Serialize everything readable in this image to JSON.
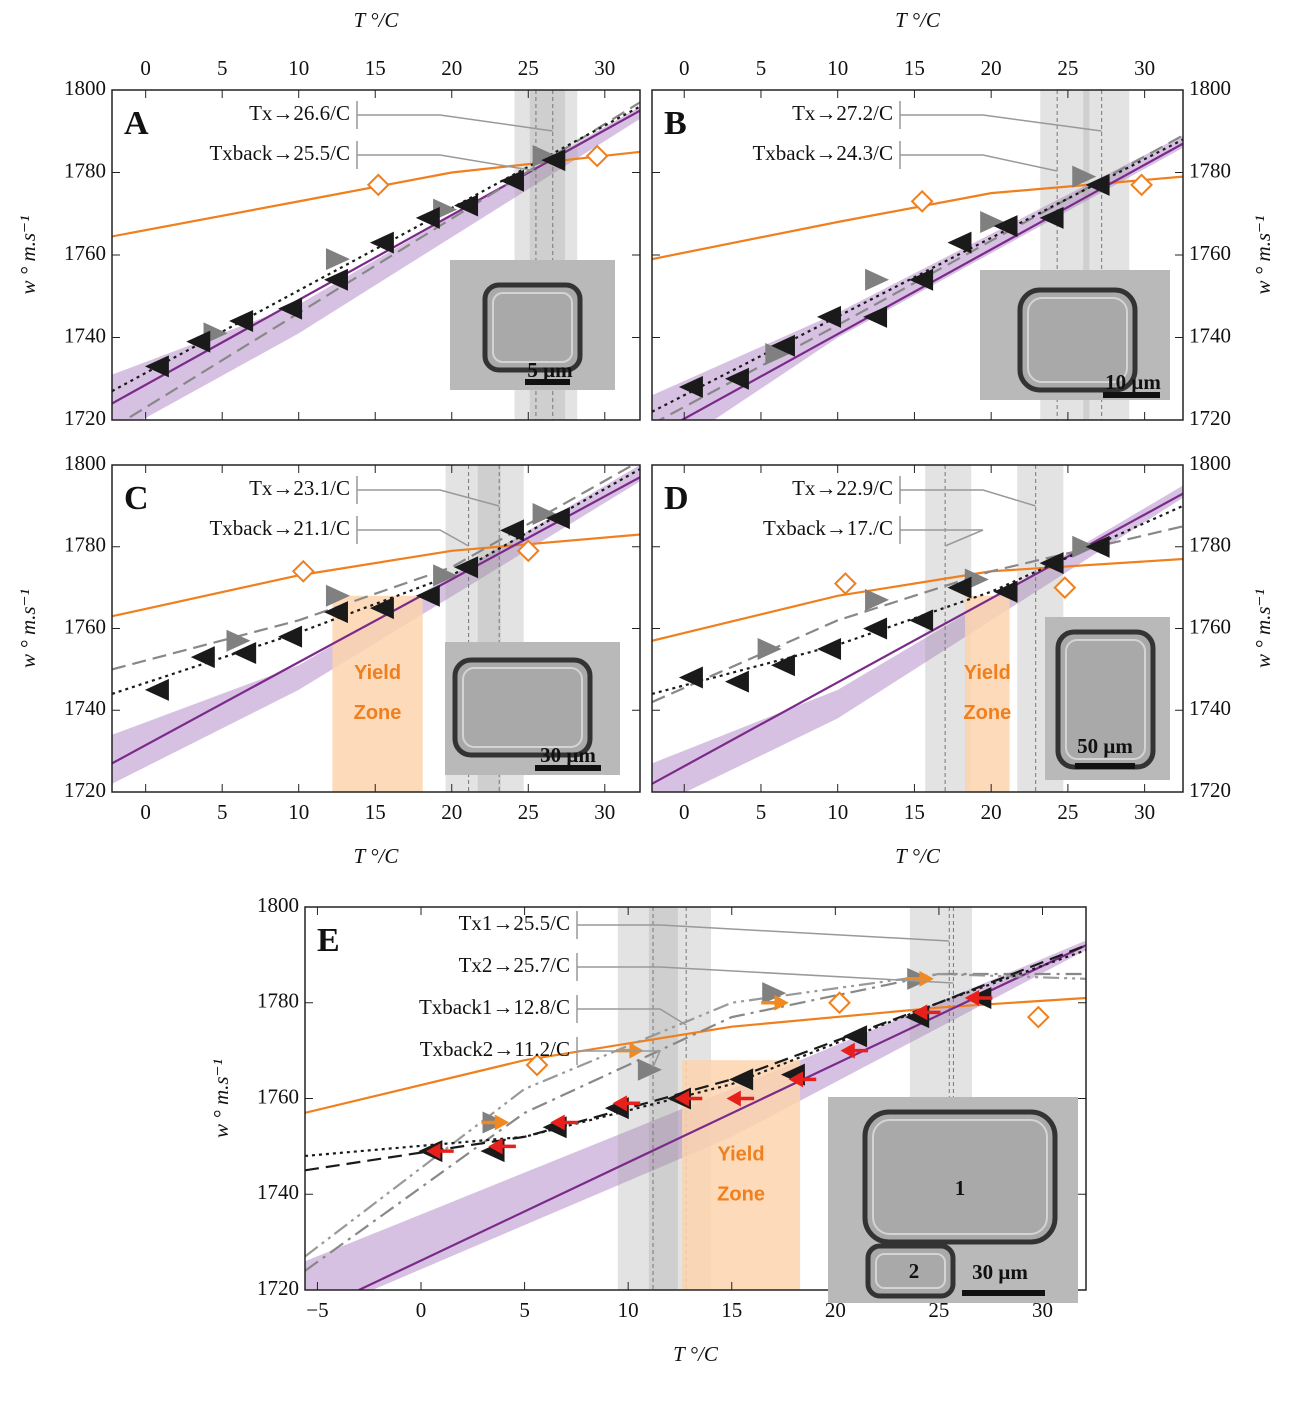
{
  "chart_data": [
    {
      "type": "scatter",
      "panel": "A",
      "xlabel": "T °/C",
      "ylabel": "w ° m.s⁻¹",
      "xaxis_labels": "top",
      "yaxis_labels": "left",
      "xlim": [
        -2.2,
        32.3
      ],
      "ylim": [
        1720,
        1800
      ],
      "xticks": [
        0,
        5,
        10,
        15,
        20,
        25,
        30
      ],
      "yticks": [
        1720,
        1740,
        1760,
        1780,
        1800
      ],
      "shaded": [
        [
          24.1,
          27.4
        ],
        [
          25.1,
          28.2
        ]
      ],
      "vlines": [
        26.6,
        25.5
      ],
      "annotations": [
        "Tx→26.6/C",
        "Txback→25.5/C"
      ],
      "series": [
        {
          "kind": "band",
          "color": "#c6a6d6",
          "x": [
            -2.2,
            10,
            32.3
          ],
          "values": [
            1731,
            1748,
            1796
          ],
          "lower": [
            1716,
            1741,
            1793
          ]
        },
        {
          "kind": "line",
          "style": "solid",
          "color": "#f07f1e",
          "x": [
            -2.2,
            10,
            20,
            32.3
          ],
          "values": [
            1764.5,
            1773,
            1780,
            1785
          ]
        },
        {
          "kind": "line",
          "style": "solid",
          "color": "#7b2a8a",
          "x": [
            -2.2,
            32.3
          ],
          "values": [
            1724,
            1795
          ]
        },
        {
          "kind": "line",
          "style": "dashed",
          "color": "#888888",
          "x": [
            -2.2,
            32.3
          ],
          "values": [
            1718,
            1797
          ]
        },
        {
          "kind": "line",
          "style": "dotted",
          "color": "#1a1a1a",
          "x": [
            -2.2,
            32.3
          ],
          "values": [
            1727,
            1796
          ]
        },
        {
          "kind": "marker",
          "marker": "diamond",
          "color": "#f07f1e",
          "x": [
            15.2,
            29.5
          ],
          "values": [
            1777,
            1784
          ]
        },
        {
          "kind": "marker",
          "marker": "right-triangle",
          "color": "#808080",
          "x": [
            4.5,
            12.5,
            19.5,
            26
          ],
          "values": [
            1741,
            1759,
            1771,
            1784
          ]
        },
        {
          "kind": "marker",
          "marker": "left-triangle",
          "color": "#1a1a1a",
          "x": [
            0.8,
            3.5,
            6.3,
            9.5,
            12.5,
            15.5,
            18.5,
            21,
            24,
            26.7
          ],
          "values": [
            1733,
            1739,
            1744,
            1747,
            1754,
            1763,
            1769,
            1772,
            1778,
            1783
          ]
        }
      ],
      "inset": {
        "scale_label": "5 μm"
      }
    },
    {
      "type": "scatter",
      "panel": "B",
      "xlabel": "T °/C",
      "ylabel": "w ° m.s⁻¹",
      "xaxis_labels": "top",
      "yaxis_labels": "right",
      "xlim": [
        -2.1,
        32.5
      ],
      "ylim": [
        1720,
        1800
      ],
      "xticks": [
        0,
        5,
        10,
        15,
        20,
        25,
        30
      ],
      "yticks": [
        1720,
        1740,
        1760,
        1780,
        1800
      ],
      "shaded": [
        [
          23.2,
          26.4
        ],
        [
          26.0,
          29.0
        ]
      ],
      "vlines": [
        27.2,
        24.3
      ],
      "annotations": [
        "Tx→27.2/C",
        "Txback→24.3/C"
      ],
      "series": [
        {
          "kind": "band",
          "color": "#c6a6d6",
          "x": [
            -2.1,
            10,
            32.5
          ],
          "values": [
            1726,
            1746,
            1789
          ],
          "lower": [
            1710,
            1740,
            1786
          ]
        },
        {
          "kind": "line",
          "style": "solid",
          "color": "#f07f1e",
          "x": [
            -2.1,
            10,
            20,
            32.5
          ],
          "values": [
            1759,
            1768,
            1775,
            1779
          ]
        },
        {
          "kind": "line",
          "style": "solid",
          "color": "#7b2a8a",
          "x": [
            -2.1,
            32.5
          ],
          "values": [
            1716,
            1787
          ]
        },
        {
          "kind": "line",
          "style": "dashed",
          "color": "#888888",
          "x": [
            -2.1,
            10,
            32.5
          ],
          "values": [
            1719,
            1743,
            1789
          ]
        },
        {
          "kind": "line",
          "style": "dotted",
          "color": "#1a1a1a",
          "x": [
            -2.1,
            32.5
          ],
          "values": [
            1722,
            1788
          ]
        },
        {
          "kind": "marker",
          "marker": "diamond",
          "color": "#f07f1e",
          "x": [
            15.5,
            29.8
          ],
          "values": [
            1773,
            1777
          ]
        },
        {
          "kind": "marker",
          "marker": "right-triangle",
          "color": "#808080",
          "x": [
            6,
            12.5,
            20,
            26
          ],
          "values": [
            1736,
            1754,
            1768,
            1779
          ]
        },
        {
          "kind": "marker",
          "marker": "left-triangle",
          "color": "#1a1a1a",
          "x": [
            0.5,
            3.5,
            6.5,
            9.5,
            12.5,
            15.5,
            18,
            21,
            24,
            27
          ],
          "values": [
            1728,
            1730,
            1738,
            1745,
            1745,
            1754,
            1763,
            1767,
            1769,
            1777
          ]
        }
      ],
      "inset": {
        "scale_label": "10 μm"
      }
    },
    {
      "type": "scatter",
      "panel": "C",
      "xlabel": "T °/C",
      "ylabel": "w ° m.s⁻¹",
      "xaxis_labels": "bottom",
      "yaxis_labels": "left",
      "xlim": [
        -2.2,
        32.3
      ],
      "ylim": [
        1720,
        1800
      ],
      "xticks": [
        0,
        5,
        10,
        15,
        20,
        25,
        30
      ],
      "yticks": [
        1720,
        1740,
        1760,
        1780,
        1800
      ],
      "shaded": [
        [
          19.6,
          23.2
        ],
        [
          21.7,
          24.7
        ]
      ],
      "vlines": [
        23.1,
        21.1
      ],
      "annotations": [
        "Tx→23.1/C",
        "Txback→21.1/C"
      ],
      "yield_zone": {
        "text": [
          "Yield",
          "Zone"
        ],
        "x": [
          12.2,
          18.1
        ]
      },
      "series": [
        {
          "kind": "band",
          "color": "#c6a6d6",
          "x": [
            -2.2,
            10,
            32.3
          ],
          "values": [
            1734,
            1751,
            1800
          ],
          "lower": [
            1722,
            1745,
            1796
          ]
        },
        {
          "kind": "line",
          "style": "solid",
          "color": "#f07f1e",
          "x": [
            -2.2,
            10,
            20,
            32.3
          ],
          "values": [
            1763,
            1773,
            1779,
            1783
          ]
        },
        {
          "kind": "line",
          "style": "solid",
          "color": "#7b2a8a",
          "x": [
            -2.2,
            32.3
          ],
          "values": [
            1727,
            1797
          ]
        },
        {
          "kind": "line",
          "style": "dashed",
          "color": "#888888",
          "x": [
            -2.2,
            10,
            20,
            32.3
          ],
          "values": [
            1750,
            1762,
            1775,
            1801
          ]
        },
        {
          "kind": "line",
          "style": "dotted",
          "color": "#1a1a1a",
          "x": [
            -2.2,
            10,
            20,
            32.3
          ],
          "values": [
            1744,
            1759,
            1773,
            1799
          ]
        },
        {
          "kind": "marker",
          "marker": "diamond",
          "color": "#f07f1e",
          "x": [
            10.3,
            25
          ],
          "values": [
            1774,
            1779
          ]
        },
        {
          "kind": "marker",
          "marker": "right-triangle",
          "color": "#808080",
          "x": [
            6,
            12.5,
            19.5,
            26
          ],
          "values": [
            1757,
            1768,
            1773,
            1788
          ]
        },
        {
          "kind": "marker",
          "marker": "left-triangle",
          "color": "#1a1a1a",
          "x": [
            0.8,
            3.8,
            6.5,
            9.5,
            12.5,
            15.5,
            18.5,
            21,
            24,
            27
          ],
          "values": [
            1745,
            1753,
            1754,
            1758,
            1764,
            1765,
            1768,
            1775,
            1784,
            1787
          ]
        }
      ],
      "inset": {
        "scale_label": "30 μm"
      }
    },
    {
      "type": "scatter",
      "panel": "D",
      "xlabel": "T °/C",
      "ylabel": "w ° m.s⁻¹",
      "xaxis_labels": "bottom",
      "yaxis_labels": "right",
      "xlim": [
        -2.1,
        32.5
      ],
      "ylim": [
        1720,
        1800
      ],
      "xticks": [
        0,
        5,
        10,
        15,
        20,
        25,
        30
      ],
      "yticks": [
        1720,
        1740,
        1760,
        1780,
        1800
      ],
      "shaded": [
        [
          15.7,
          18.7
        ],
        [
          21.7,
          24.7
        ]
      ],
      "vlines": [
        22.9,
        17
      ],
      "annotations": [
        "Tx→22.9/C",
        "Txback→17./C"
      ],
      "yield_zone": {
        "text": [
          "Yield",
          "Zone"
        ],
        "x": [
          18.3,
          21.2
        ]
      },
      "series": [
        {
          "kind": "band",
          "color": "#c6a6d6",
          "x": [
            -2.1,
            10,
            32.5
          ],
          "values": [
            1727,
            1745,
            1795
          ],
          "lower": [
            1716,
            1738,
            1792
          ]
        },
        {
          "kind": "line",
          "style": "solid",
          "color": "#f07f1e",
          "x": [
            -2.1,
            10,
            20,
            32.5
          ],
          "values": [
            1757,
            1768,
            1774,
            1777
          ]
        },
        {
          "kind": "line",
          "style": "solid",
          "color": "#7b2a8a",
          "x": [
            -2.1,
            32.5
          ],
          "values": [
            1722,
            1793
          ]
        },
        {
          "kind": "line",
          "style": "dashed",
          "color": "#888888",
          "x": [
            -2.1,
            10,
            20,
            32.5
          ],
          "values": [
            1742,
            1762,
            1774,
            1785
          ]
        },
        {
          "kind": "line",
          "style": "dotted",
          "color": "#1a1a1a",
          "x": [
            -2.1,
            10,
            20,
            32.5
          ],
          "values": [
            1744,
            1756,
            1769,
            1790
          ]
        },
        {
          "kind": "marker",
          "marker": "diamond",
          "color": "#f07f1e",
          "x": [
            10.5,
            24.8
          ],
          "values": [
            1771,
            1770
          ]
        },
        {
          "kind": "marker",
          "marker": "right-triangle",
          "color": "#808080",
          "x": [
            5.5,
            12.5,
            19,
            26
          ],
          "values": [
            1755,
            1767,
            1772,
            1780
          ]
        },
        {
          "kind": "marker",
          "marker": "left-triangle",
          "color": "#1a1a1a",
          "x": [
            0.5,
            3.5,
            6.5,
            9.5,
            12.5,
            15.5,
            18,
            21,
            24,
            27
          ],
          "values": [
            1748,
            1747,
            1751,
            1755,
            1760,
            1762,
            1770,
            1769,
            1776,
            1780
          ]
        }
      ],
      "inset": {
        "scale_label": "50 μm"
      }
    },
    {
      "type": "scatter",
      "panel": "E",
      "xlabel": "T °/C",
      "ylabel": "w ° m.s⁻¹",
      "xaxis_labels": "bottom",
      "yaxis_labels": "left",
      "xlim": [
        -5.6,
        32.1
      ],
      "ylim": [
        1720,
        1800
      ],
      "xticks": [
        {
          "value": -5,
          "label": "−5"
        },
        0,
        5,
        10,
        15,
        20,
        25,
        30
      ],
      "yticks": [
        1720,
        1740,
        1760,
        1780,
        1800
      ],
      "shaded": [
        [
          9.5,
          14.0
        ],
        [
          11.0,
          12.4
        ],
        [
          23.6,
          26.6
        ]
      ],
      "vlines": [
        25.5,
        25.7,
        12.8,
        11.2
      ],
      "annotations": [
        "Tx1→25.5/C",
        "Tx2→25.7/C",
        "Txback1→12.8/C",
        "Txback2→11.2/C"
      ],
      "yield_zone": {
        "text": [
          "Yield",
          "Zone"
        ],
        "x": [
          12.6,
          18.3
        ]
      },
      "series": [
        {
          "kind": "band",
          "color": "#c6a6d6",
          "x": [
            -5.6,
            15,
            32.1
          ],
          "values": [
            1726,
            1762,
            1793
          ],
          "lower": [
            1714,
            1752,
            1791
          ]
        },
        {
          "kind": "line",
          "style": "solid",
          "color": "#f07f1e",
          "x": [
            -5.6,
            5,
            15,
            25,
            32.1
          ],
          "values": [
            1757,
            1768,
            1775,
            1779,
            1781
          ]
        },
        {
          "kind": "line",
          "style": "solid",
          "color": "#7b2a8a",
          "x": [
            -3,
            32.1
          ],
          "values": [
            1720,
            1792
          ]
        },
        {
          "kind": "line",
          "style": "dashdot",
          "color": "#888888",
          "x": [
            -5.6,
            5,
            15,
            25,
            32.1
          ],
          "values": [
            1724,
            1757,
            1777,
            1786,
            1786
          ]
        },
        {
          "kind": "line",
          "style": "dashdotdot",
          "color": "#999999",
          "x": [
            -5.6,
            5,
            15,
            25,
            32.1
          ],
          "values": [
            1727,
            1762,
            1780,
            1786,
            1785
          ]
        },
        {
          "kind": "line",
          "style": "dashed",
          "color": "#1a1a1a",
          "x": [
            -5.6,
            5,
            15,
            25,
            32.1
          ],
          "values": [
            1745,
            1752,
            1764,
            1780,
            1792
          ]
        },
        {
          "kind": "line",
          "style": "dotted",
          "color": "#1a1a1a",
          "x": [
            -5.6,
            5,
            15,
            25,
            32.1
          ],
          "values": [
            1748,
            1752,
            1763,
            1780,
            1791
          ]
        },
        {
          "kind": "marker",
          "marker": "diamond",
          "color": "#f07f1e",
          "x": [
            5.6,
            20.2,
            29.8
          ],
          "values": [
            1767,
            1780,
            1777
          ]
        },
        {
          "kind": "marker",
          "marker": "right-triangle",
          "color": "#808080",
          "x": [
            3.5,
            11,
            17,
            24
          ],
          "values": [
            1755,
            1766,
            1782,
            1785
          ]
        },
        {
          "kind": "marker",
          "marker": "left-triangle",
          "color": "#1a1a1a",
          "x": [
            0.5,
            3.5,
            6.5,
            9.5,
            12.5,
            15.5,
            18,
            21,
            24,
            27
          ],
          "values": [
            1749,
            1749,
            1754,
            1758,
            1760,
            1764,
            1765,
            1773,
            1777,
            1781
          ]
        },
        {
          "kind": "marker",
          "marker": "right-arrow",
          "color": "#f08a20",
          "x": [
            3.5,
            10,
            17,
            24
          ],
          "values": [
            1755,
            1770,
            1780,
            1785
          ]
        },
        {
          "kind": "marker",
          "marker": "left-arrow",
          "color": "#e8201c",
          "x": [
            1,
            4,
            7,
            10,
            13,
            15.5,
            18.5,
            21,
            24.5,
            27
          ],
          "values": [
            1749,
            1750,
            1755,
            1759,
            1760,
            1760,
            1764,
            1770,
            1778,
            1781
          ]
        }
      ],
      "inset": {
        "scale_label": "30 μm",
        "cell_labels": [
          "1",
          "2"
        ]
      }
    }
  ]
}
